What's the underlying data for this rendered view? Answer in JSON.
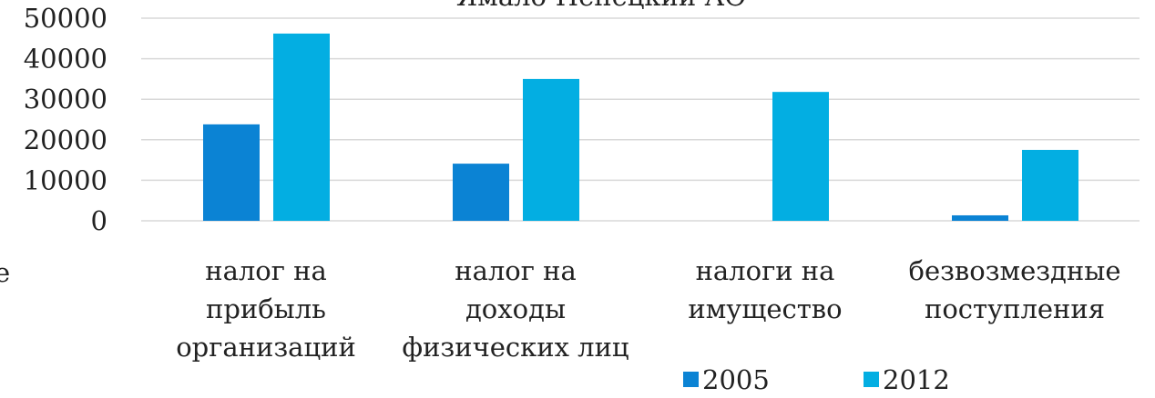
{
  "chart_data": {
    "type": "bar",
    "title": "Ямало-Ненецкий АО",
    "annotation": "е",
    "categories": [
      "налог на\nприбыль\nорганизаций",
      "налог на\nдоходы\nфизических лиц",
      "налоги на\nимущество",
      "безвозмездные\nпоступления"
    ],
    "series": [
      {
        "name": "2005",
        "color": "#0b83d4",
        "values": [
          23800,
          14100,
          0,
          1350
        ]
      },
      {
        "name": "2012",
        "color": "#03aee2",
        "values": [
          46200,
          35000,
          31800,
          17500
        ]
      }
    ],
    "ylim": [
      0,
      50000
    ],
    "yticks": [
      0,
      10000,
      20000,
      30000,
      40000,
      50000
    ],
    "grid": true,
    "legend": "bottom"
  }
}
